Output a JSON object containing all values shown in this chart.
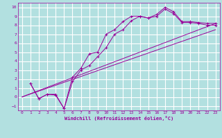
{
  "xlabel": "Windchill (Refroidissement éolien,°C)",
  "background_color": "#b2e0e0",
  "grid_color": "#ffffff",
  "line_color": "#990099",
  "xlim": [
    -0.5,
    23.5
  ],
  "ylim": [
    -1.5,
    10.5
  ],
  "xticks": [
    0,
    1,
    2,
    3,
    4,
    5,
    6,
    7,
    8,
    9,
    10,
    11,
    12,
    13,
    14,
    15,
    16,
    17,
    18,
    19,
    20,
    21,
    22,
    23
  ],
  "yticks": [
    -1,
    0,
    1,
    2,
    3,
    4,
    5,
    6,
    7,
    8,
    9,
    10
  ],
  "series": [
    {
      "x": [
        1,
        2,
        3,
        4,
        5,
        6,
        7,
        8,
        9,
        10,
        11,
        12,
        13,
        14,
        15,
        16,
        17,
        18,
        19,
        20,
        21,
        22,
        23
      ],
      "y": [
        1.5,
        -0.2,
        0.3,
        0.2,
        -1.3,
        2.2,
        3.2,
        4.8,
        5.0,
        7.0,
        7.5,
        8.4,
        9.0,
        9.0,
        8.8,
        9.0,
        9.8,
        9.3,
        8.3,
        8.3,
        8.2,
        8.0,
        8.0
      ],
      "marker": true
    },
    {
      "x": [
        1,
        2,
        3,
        4,
        5,
        6,
        7,
        8,
        9,
        10,
        11,
        12,
        13,
        14,
        15,
        16,
        17,
        18,
        19,
        20,
        21,
        22,
        23
      ],
      "y": [
        1.5,
        -0.2,
        0.3,
        0.3,
        -1.3,
        1.7,
        3.0,
        3.5,
        4.5,
        5.5,
        7.0,
        7.5,
        8.5,
        9.0,
        8.8,
        9.2,
        10.0,
        9.5,
        8.4,
        8.4,
        8.3,
        8.2,
        8.2
      ],
      "marker": true
    },
    {
      "x": [
        0,
        23
      ],
      "y": [
        0,
        8.2
      ],
      "marker": false
    },
    {
      "x": [
        0,
        23
      ],
      "y": [
        0,
        7.5
      ],
      "marker": false
    }
  ]
}
